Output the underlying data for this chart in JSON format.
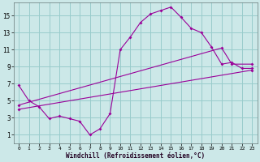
{
  "bg_color": "#cce8e8",
  "line_color": "#990099",
  "grid_color": "#99cccc",
  "xlabel": "Windchill (Refroidissement éolien,°C)",
  "xlim": [
    -0.5,
    23.5
  ],
  "ylim": [
    0,
    16.5
  ],
  "xticks": [
    0,
    1,
    2,
    3,
    4,
    5,
    6,
    7,
    8,
    9,
    10,
    11,
    12,
    13,
    14,
    15,
    16,
    17,
    18,
    19,
    20,
    21,
    22,
    23
  ],
  "yticks": [
    1,
    3,
    5,
    7,
    9,
    11,
    13,
    15
  ],
  "line1_x": [
    0,
    1,
    2,
    3,
    4,
    5,
    6,
    7,
    8,
    9,
    10,
    11,
    12,
    13,
    14,
    15,
    16,
    17,
    18,
    19,
    20,
    21,
    22,
    23
  ],
  "line1_y": [
    6.8,
    5.0,
    4.3,
    2.9,
    3.2,
    2.9,
    2.6,
    1.0,
    1.7,
    3.5,
    11.0,
    12.5,
    14.2,
    15.2,
    15.6,
    16.0,
    14.8,
    13.5,
    13.0,
    11.3,
    9.3,
    9.5,
    8.8,
    8.8
  ],
  "line2_x": [
    0,
    20,
    21,
    23
  ],
  "line2_y": [
    4.5,
    11.2,
    9.3,
    9.3
  ],
  "line3_x": [
    0,
    23
  ],
  "line3_y": [
    4.0,
    8.6
  ],
  "figsize": [
    3.2,
    2.0
  ],
  "dpi": 100
}
